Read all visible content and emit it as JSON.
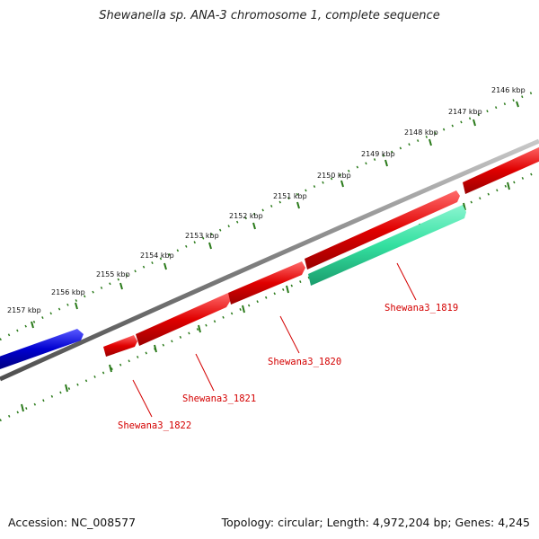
{
  "title": "Shewanella sp. ANA-3 chromosome 1, complete sequence",
  "accession": "Accession: NC_008577",
  "topology": "Topology: circular; Length: 4,972,204 bp; Genes: 4,245",
  "colors": {
    "backbone": "#808080",
    "tick": "#2a7a1a",
    "gene_forward": "#e00000",
    "gene_highlight": "#33e0a0",
    "gene_other": "#0000d0",
    "label": "#d40000"
  },
  "scale_labels": [
    "2146 kbp",
    "2147 kbp",
    "2148 kbp",
    "2149 kbp",
    "2150 kbp",
    "2151 kbp",
    "2152 kbp",
    "2153 kbp",
    "2154 kbp",
    "2155 kbp",
    "2156 kbp",
    "2157 kbp"
  ],
  "genes": [
    {
      "label": "Shewana3_1819",
      "color": "teal"
    },
    {
      "label": "Shewana3_1820",
      "color": "red"
    },
    {
      "label": "Shewana3_1821",
      "color": "red"
    },
    {
      "label": "Shewana3_1822",
      "color": "red"
    }
  ]
}
